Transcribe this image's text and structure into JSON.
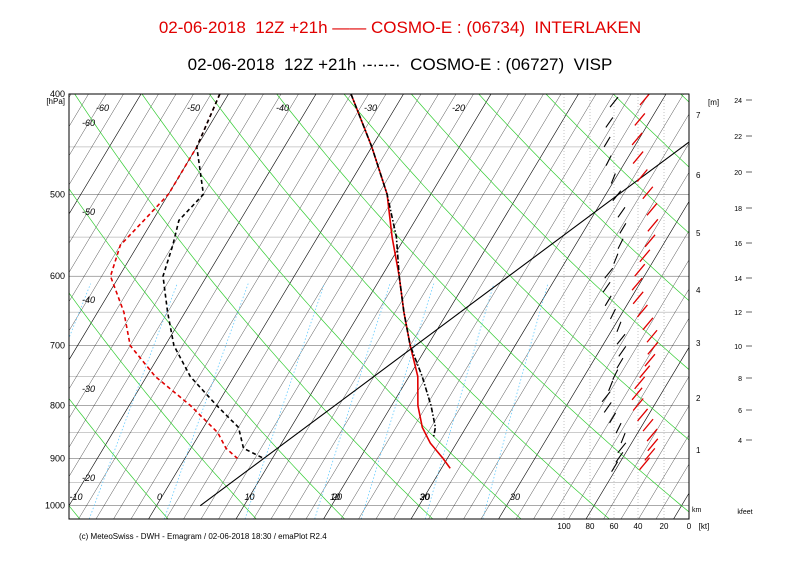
{
  "header": {
    "line1": "02-06-2018  12Z +21h —— COSMO-E : (06734)  INTERLAKEN",
    "line2": "02-06-2018  12Z +21h ·-·-·-·  COSMO-E : (06727)  VISP",
    "color1": "#e00000",
    "color2": "#000000"
  },
  "footer": {
    "credit": "(c) MeteoSwiss - DWH - Emagram / 02-06-2018  18:30 / emaPlot R2.4"
  },
  "chart_data": {
    "type": "line",
    "title": "",
    "pressure_unit": "[hPa]",
    "pressure_ticks": [
      "400",
      "500",
      "600",
      "700",
      "800",
      "900",
      "1000"
    ],
    "pressure_values": [
      400,
      500,
      600,
      700,
      800,
      900,
      1000
    ],
    "ylim": [
      400,
      1030
    ],
    "temperature_ticks": [
      "-10",
      "0",
      "10",
      "20",
      "30"
    ],
    "temperature_values": [
      -10,
      0,
      10,
      20,
      30
    ],
    "isotherm_labels": [
      "-60",
      "-50",
      "-40",
      "-30",
      "-20",
      "-60",
      "-50",
      "-40",
      "-30",
      "-20"
    ],
    "height_unit": "[m]",
    "height_axis_labels": [
      "7",
      "6",
      "5",
      "4",
      "3",
      "2",
      "1"
    ],
    "height_km_label": "km",
    "wind_axis_labels": [
      "100",
      "80",
      "60",
      "40",
      "20",
      "0"
    ],
    "wind_unit": "[kt]",
    "kfeet_labels": [
      "24",
      "22",
      "20",
      "18",
      "16",
      "14",
      "12",
      "10",
      "8",
      "6",
      "4"
    ],
    "kfeet_unit": "kfeet",
    "mixing_labels": [
      "10",
      "20",
      "30"
    ],
    "series": [
      {
        "name": "INTERLAKEN",
        "color": "#e00000",
        "style": "solid",
        "temperature": [
          [
            400,
            -16
          ],
          [
            450,
            -10
          ],
          [
            500,
            -5
          ],
          [
            550,
            -1.5
          ],
          [
            600,
            2
          ],
          [
            650,
            5
          ],
          [
            700,
            8
          ],
          [
            750,
            11
          ],
          [
            800,
            13
          ],
          [
            840,
            15
          ],
          [
            870,
            17
          ],
          [
            900,
            19.5
          ],
          [
            920,
            21
          ]
        ],
        "dewpoint": [
          [
            400,
            -31
          ],
          [
            450,
            -30
          ],
          [
            500,
            -30
          ],
          [
            530,
            -31
          ],
          [
            560,
            -32
          ],
          [
            600,
            -31
          ],
          [
            650,
            -27
          ],
          [
            700,
            -24
          ],
          [
            750,
            -19
          ],
          [
            800,
            -13
          ],
          [
            850,
            -8
          ],
          [
            880,
            -6
          ],
          [
            900,
            -4
          ]
        ]
      },
      {
        "name": "VISP",
        "color": "#000000",
        "style": "dashdot",
        "temperature": [
          [
            400,
            -16
          ],
          [
            450,
            -10
          ],
          [
            500,
            -5
          ],
          [
            550,
            -1
          ],
          [
            600,
            2
          ],
          [
            650,
            5
          ],
          [
            700,
            8
          ],
          [
            750,
            11.5
          ],
          [
            800,
            14.5
          ],
          [
            840,
            16.5
          ],
          [
            860,
            17
          ]
        ],
        "dewpoint": [
          [
            400,
            -31
          ],
          [
            450,
            -30
          ],
          [
            500,
            -26
          ],
          [
            530,
            -27
          ],
          [
            560,
            -26
          ],
          [
            600,
            -25
          ],
          [
            650,
            -22
          ],
          [
            700,
            -19
          ],
          [
            750,
            -15
          ],
          [
            800,
            -10
          ],
          [
            840,
            -6
          ],
          [
            880,
            -4
          ],
          [
            900,
            -1
          ]
        ]
      }
    ]
  }
}
